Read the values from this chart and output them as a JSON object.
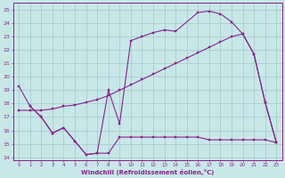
{
  "xlabel": "Windchill (Refroidissement éolien,°C)",
  "bg_color": "#c8e8e8",
  "grid_color": "#aacccc",
  "line_color": "#882288",
  "xlim": [
    -0.5,
    23.5
  ],
  "ylim": [
    13.8,
    25.5
  ],
  "xticks": [
    0,
    1,
    2,
    3,
    4,
    5,
    6,
    7,
    8,
    9,
    10,
    11,
    12,
    13,
    14,
    15,
    16,
    17,
    18,
    19,
    20,
    21,
    22,
    23
  ],
  "yticks": [
    14,
    15,
    16,
    17,
    18,
    19,
    20,
    21,
    22,
    23,
    24,
    25
  ],
  "upper_line_x": [
    0,
    1,
    2,
    3,
    4,
    5,
    6,
    7,
    8,
    9,
    10,
    11,
    12,
    13,
    14,
    16,
    17,
    18,
    19,
    20,
    21,
    22,
    23
  ],
  "upper_line_y": [
    19.3,
    17.8,
    17.0,
    15.8,
    16.2,
    15.2,
    14.2,
    14.3,
    19.0,
    16.5,
    22.7,
    23.0,
    23.3,
    23.5,
    23.4,
    24.8,
    24.9,
    24.7,
    24.1,
    23.2,
    21.7,
    18.1,
    15.1
  ],
  "mid_line_x": [
    0,
    1,
    2,
    3,
    4,
    5,
    6,
    7,
    8,
    9,
    10,
    11,
    12,
    13,
    14,
    15,
    16,
    17,
    18,
    19,
    20,
    21,
    22,
    23
  ],
  "mid_line_y": [
    17.5,
    17.5,
    17.5,
    17.6,
    17.8,
    17.9,
    18.1,
    18.3,
    18.6,
    19.0,
    19.4,
    19.8,
    20.2,
    20.6,
    21.0,
    21.4,
    21.8,
    22.2,
    22.6,
    23.0,
    23.2,
    21.7,
    18.1,
    15.1
  ],
  "low_line_x": [
    1,
    2,
    3,
    4,
    5,
    6,
    7,
    8,
    9,
    10,
    11,
    12,
    13,
    14,
    15,
    16,
    17,
    18,
    19,
    20,
    21,
    22,
    23
  ],
  "low_line_y": [
    17.8,
    17.0,
    15.8,
    16.2,
    15.2,
    14.2,
    14.3,
    14.3,
    15.5,
    15.5,
    15.5,
    15.5,
    15.5,
    15.5,
    15.5,
    15.5,
    15.3,
    15.3,
    15.3,
    15.3,
    15.3,
    15.3,
    15.1
  ]
}
